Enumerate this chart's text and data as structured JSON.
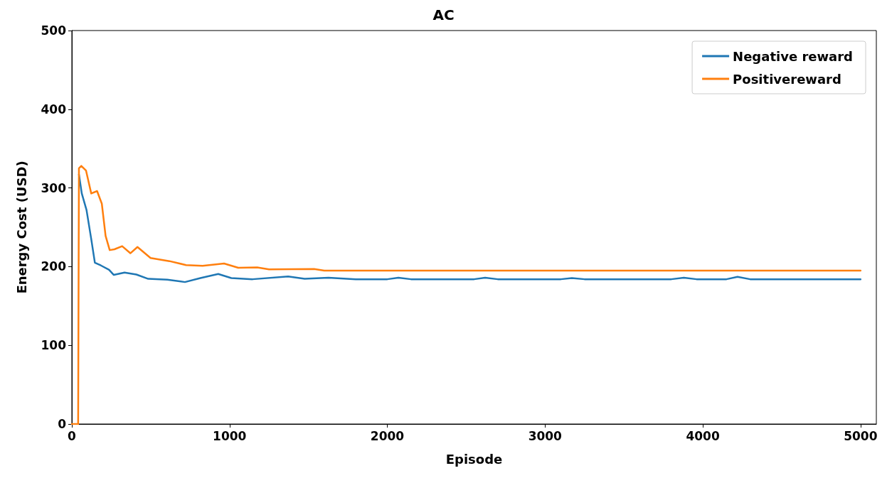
{
  "chart_data": {
    "type": "line",
    "title": "AC",
    "xlabel": "Episode",
    "ylabel": "Energy Cost (USD)",
    "xlim": [
      0,
      5100
    ],
    "xticks": [
      0,
      1000,
      2000,
      3000,
      4000,
      5000
    ],
    "ylim": [
      0,
      500
    ],
    "yticks": [
      0,
      100,
      200,
      300,
      400,
      500
    ],
    "grid": false,
    "legend": "top right",
    "marker": "none",
    "line_style": "solid",
    "series": [
      {
        "name": "Negative reward",
        "color": "#1f77b4",
        "x": [
          45,
          63,
          93,
          123,
          146,
          184,
          236,
          266,
          334,
          409,
          484,
          605,
          717,
          815,
          928,
          1011,
          1146,
          1371,
          1476,
          1627,
          1800,
          2000,
          2070,
          2150,
          2550,
          2620,
          2700,
          3100,
          3170,
          3250,
          3800,
          3880,
          3960,
          4150,
          4220,
          4300,
          4600,
          5000
        ],
        "values": [
          317,
          293,
          272,
          235,
          205,
          201.5,
          196,
          189.5,
          192.5,
          190,
          184.5,
          183.4,
          180.4,
          185.5,
          190.6,
          185.5,
          184,
          187.6,
          184.5,
          186,
          184,
          184,
          186,
          184,
          184,
          186,
          184,
          184,
          185.5,
          184,
          184,
          186,
          184,
          184,
          187,
          184,
          184,
          184
        ]
      },
      {
        "name": "Positivereward",
        "color": "#ff7f0e",
        "x": [
          0,
          40,
          45,
          60,
          90,
          123,
          160,
          190,
          214,
          240,
          270,
          319,
          371,
          416,
          499,
          619,
          724,
          829,
          965,
          1055,
          1175,
          1250,
          1536,
          1600,
          5000
        ],
        "values": [
          0,
          0,
          325,
          328,
          322,
          293,
          296,
          280,
          239,
          221,
          222,
          226,
          217,
          225,
          211,
          207,
          202,
          201,
          204,
          198.5,
          199,
          196.5,
          197,
          195,
          195
        ]
      }
    ]
  }
}
